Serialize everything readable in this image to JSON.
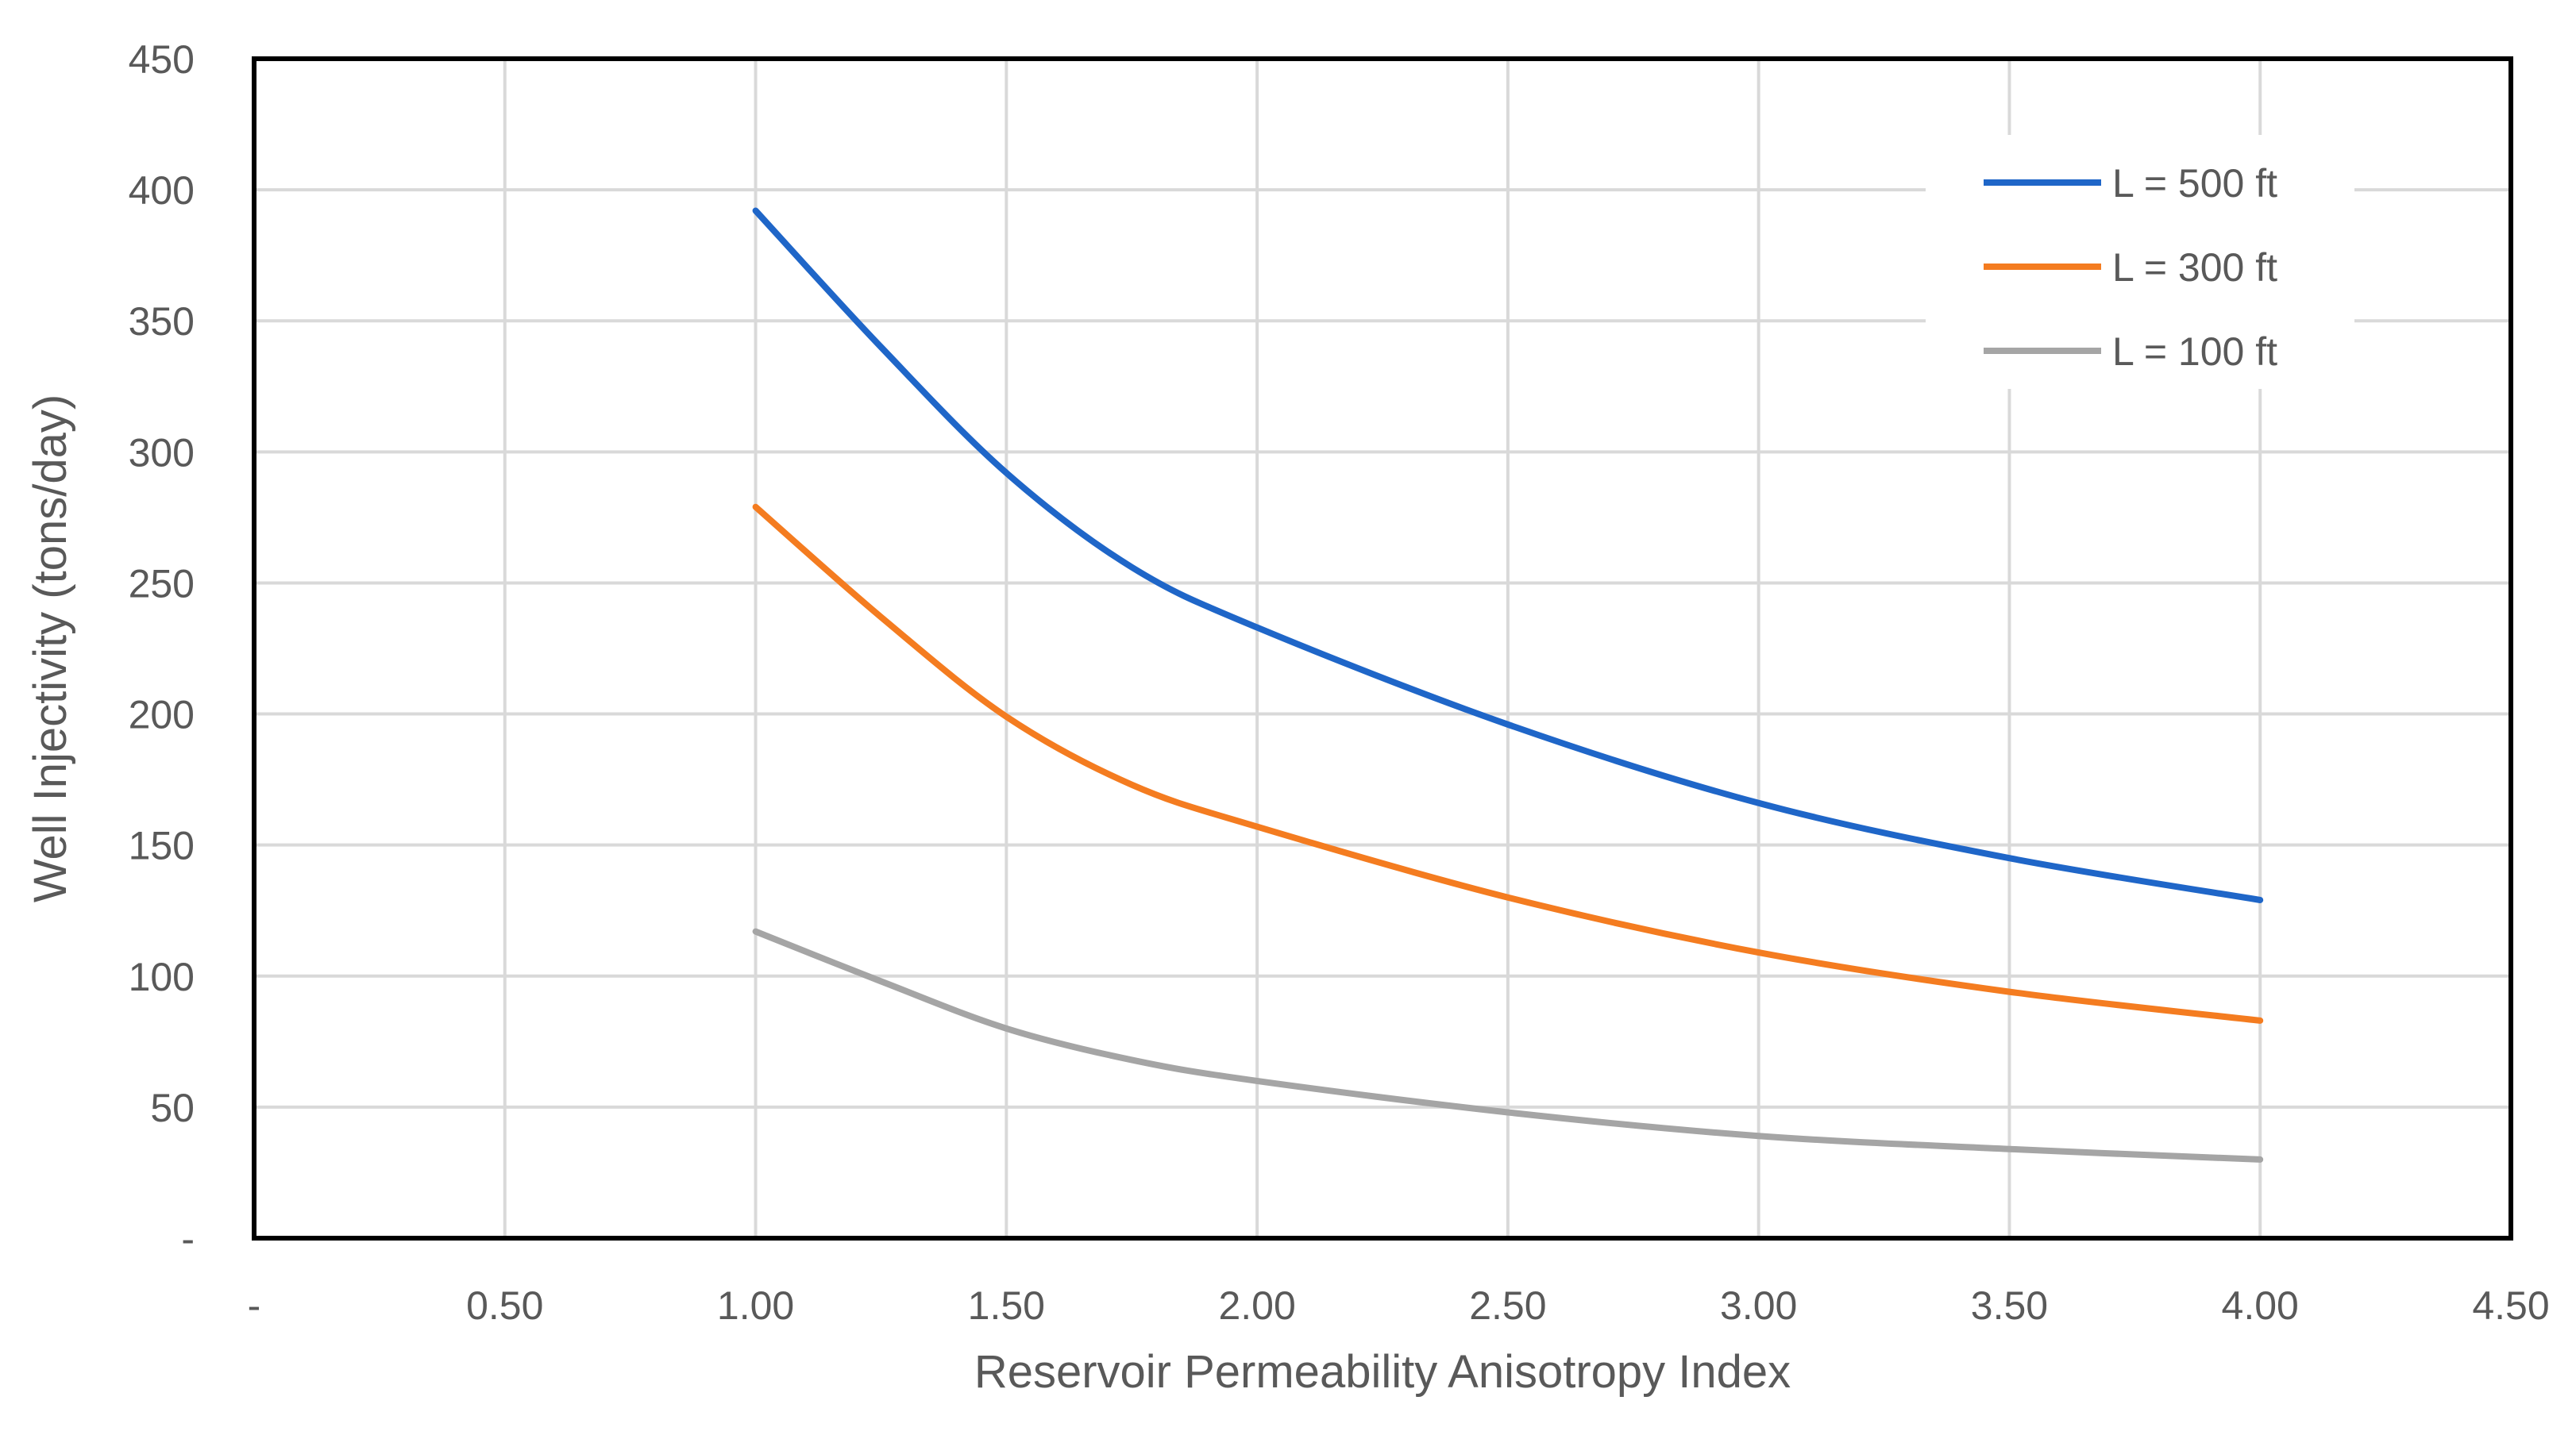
{
  "chart_data": {
    "type": "line",
    "title": "",
    "xlabel": "Reservoir Permeability Anisotropy Index",
    "ylabel": "Well Injectivity (tons/day)",
    "xlim": [
      0,
      4.5
    ],
    "ylim": [
      0,
      450
    ],
    "x_ticks": [
      "-",
      "0.50",
      "1.00",
      "1.50",
      "2.00",
      "2.50",
      "3.00",
      "3.50",
      "4.00",
      "4.50"
    ],
    "y_ticks": [
      "-",
      "50",
      "100",
      "150",
      "200",
      "250",
      "300",
      "350",
      "400",
      "450"
    ],
    "grid": true,
    "legend_position": "top-right",
    "x": [
      1.0,
      1.25,
      1.5,
      1.75,
      2.0,
      2.5,
      3.0,
      3.5,
      4.0
    ],
    "series": [
      {
        "name": "L = 500 ft",
        "color": "#1F66C8",
        "values": [
          392,
          340,
          292,
          256,
          233,
          196,
          166,
          145,
          129
        ]
      },
      {
        "name": "L = 300 ft",
        "color": "#F47C20",
        "values": [
          279,
          237,
          199,
          173,
          157,
          130,
          109,
          94,
          83
        ]
      },
      {
        "name": "L = 100 ft",
        "color": "#A5A5A5",
        "values": [
          117,
          98,
          80,
          68,
          60,
          48,
          39,
          34,
          30
        ]
      }
    ]
  }
}
